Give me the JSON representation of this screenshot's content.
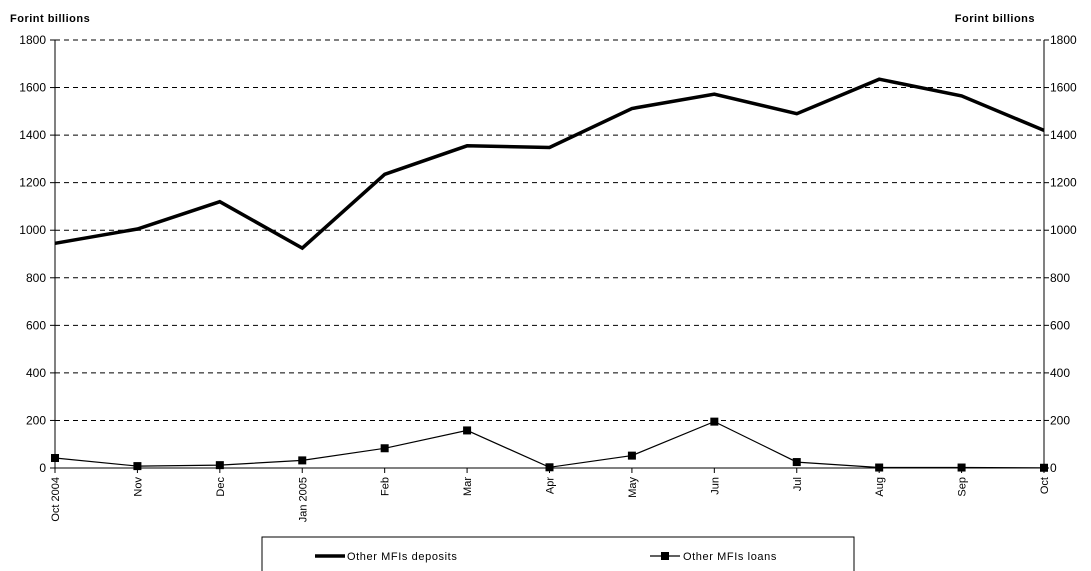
{
  "chart_data": {
    "type": "line",
    "y_left_label": "Forint billions",
    "y_right_label": "Forint billions",
    "ylim": [
      0,
      1800
    ],
    "y_ticks": [
      0,
      200,
      400,
      600,
      800,
      1000,
      1200,
      1400,
      1600,
      1800
    ],
    "grid": "horizontal dashed",
    "legend_position": "bottom",
    "categories": [
      "Oct 2004",
      "Nov",
      "Dec",
      "Jan 2005",
      "Feb",
      "Mar",
      "Apr",
      "May",
      "Jun",
      "Jul",
      "Aug",
      "Sep",
      "Oct"
    ],
    "series": [
      {
        "name": "Other MFIs deposits",
        "style": "thick-line",
        "color": "#000000",
        "values": [
          945,
          1005,
          1120,
          925,
          1235,
          1355,
          1348,
          1512,
          1572,
          1490,
          1635,
          1565,
          1420
        ]
      },
      {
        "name": "Other MFIs loans",
        "style": "line-square-marker",
        "color": "#000000",
        "values": [
          42,
          8,
          12,
          32,
          83,
          158,
          3,
          52,
          195,
          25,
          2,
          2,
          1
        ]
      }
    ]
  }
}
